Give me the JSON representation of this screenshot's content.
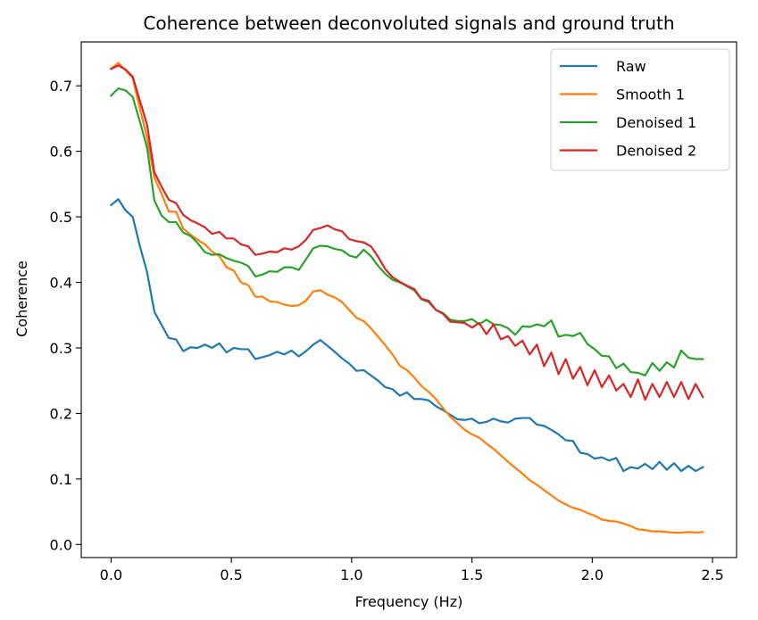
{
  "chart_data": {
    "type": "line",
    "title": "Coherence between deconvoluted signals and ground truth",
    "xlabel": "Frequency (Hz)",
    "ylabel": "Coherence",
    "xlim": [
      -0.124,
      2.6
    ],
    "ylim": [
      -0.02,
      0.767
    ],
    "xticks": [
      0.0,
      0.5,
      1.0,
      1.5,
      2.0,
      2.5
    ],
    "xtick_labels": [
      "0.0",
      "0.5",
      "1.0",
      "1.5",
      "2.0",
      "2.5"
    ],
    "yticks": [
      0.0,
      0.1,
      0.2,
      0.3,
      0.4,
      0.5,
      0.6,
      0.7
    ],
    "ytick_labels": [
      "0.0",
      "0.1",
      "0.2",
      "0.3",
      "0.4",
      "0.5",
      "0.6",
      "0.7"
    ],
    "grid": false,
    "legend_position": "top-right",
    "series": [
      {
        "name": "Raw",
        "color": "#1f77b4",
        "x": [
          0,
          0.03,
          0.06,
          0.09,
          0.12,
          0.15,
          0.18,
          0.21,
          0.24,
          0.27,
          0.3,
          0.33,
          0.36,
          0.39,
          0.42,
          0.45,
          0.48,
          0.51,
          0.54,
          0.57,
          0.6,
          0.63,
          0.66,
          0.69,
          0.72,
          0.75,
          0.78,
          0.81,
          0.84,
          0.87,
          0.9,
          0.93,
          0.96,
          0.99,
          1.02,
          1.05,
          1.08,
          1.11,
          1.14,
          1.17,
          1.2,
          1.23,
          1.26,
          1.29,
          1.32,
          1.35,
          1.38,
          1.41,
          1.44,
          1.47,
          1.5,
          1.53,
          1.56,
          1.59,
          1.62,
          1.65,
          1.68,
          1.71,
          1.74,
          1.77,
          1.8,
          1.83,
          1.86,
          1.89,
          1.92,
          1.95,
          1.98,
          2.01,
          2.04,
          2.07,
          2.1,
          2.13,
          2.16,
          2.19,
          2.22,
          2.25,
          2.28,
          2.31,
          2.34,
          2.37,
          2.4,
          2.43,
          2.46
        ],
        "values": [
          0.518,
          0.527,
          0.51,
          0.5,
          0.455,
          0.415,
          0.355,
          0.335,
          0.315,
          0.313,
          0.295,
          0.301,
          0.3,
          0.305,
          0.3,
          0.307,
          0.293,
          0.3,
          0.298,
          0.298,
          0.283,
          0.286,
          0.289,
          0.294,
          0.29,
          0.296,
          0.287,
          0.295,
          0.305,
          0.312,
          0.303,
          0.294,
          0.284,
          0.276,
          0.265,
          0.266,
          0.258,
          0.25,
          0.24,
          0.237,
          0.227,
          0.232,
          0.222,
          0.222,
          0.22,
          0.211,
          0.205,
          0.198,
          0.191,
          0.19,
          0.192,
          0.185,
          0.187,
          0.192,
          0.188,
          0.186,
          0.192,
          0.193,
          0.193,
          0.183,
          0.181,
          0.175,
          0.168,
          0.159,
          0.158,
          0.14,
          0.138,
          0.131,
          0.133,
          0.128,
          0.132,
          0.112,
          0.118,
          0.116,
          0.123,
          0.115,
          0.126,
          0.114,
          0.124,
          0.112,
          0.12,
          0.112,
          0.118
        ]
      },
      {
        "name": "Smooth 1",
        "color": "#ff7f0e",
        "x": [
          0,
          0.03,
          0.06,
          0.09,
          0.12,
          0.15,
          0.18,
          0.21,
          0.24,
          0.27,
          0.3,
          0.33,
          0.36,
          0.39,
          0.42,
          0.45,
          0.48,
          0.51,
          0.54,
          0.57,
          0.6,
          0.63,
          0.66,
          0.69,
          0.72,
          0.75,
          0.78,
          0.81,
          0.84,
          0.87,
          0.9,
          0.93,
          0.96,
          0.99,
          1.02,
          1.05,
          1.08,
          1.11,
          1.14,
          1.17,
          1.2,
          1.23,
          1.26,
          1.29,
          1.32,
          1.35,
          1.38,
          1.41,
          1.44,
          1.47,
          1.5,
          1.53,
          1.56,
          1.59,
          1.62,
          1.65,
          1.68,
          1.71,
          1.74,
          1.77,
          1.8,
          1.83,
          1.86,
          1.89,
          1.92,
          1.95,
          1.98,
          2.01,
          2.04,
          2.07,
          2.1,
          2.13,
          2.16,
          2.19,
          2.22,
          2.25,
          2.28,
          2.31,
          2.34,
          2.37,
          2.4,
          2.43,
          2.46
        ],
        "values": [
          0.726,
          0.735,
          0.724,
          0.712,
          0.665,
          0.62,
          0.56,
          0.535,
          0.508,
          0.508,
          0.482,
          0.473,
          0.465,
          0.458,
          0.447,
          0.44,
          0.423,
          0.418,
          0.4,
          0.396,
          0.378,
          0.378,
          0.371,
          0.37,
          0.366,
          0.364,
          0.365,
          0.372,
          0.386,
          0.388,
          0.381,
          0.377,
          0.37,
          0.358,
          0.346,
          0.341,
          0.33,
          0.317,
          0.304,
          0.29,
          0.273,
          0.266,
          0.255,
          0.242,
          0.233,
          0.222,
          0.208,
          0.195,
          0.185,
          0.175,
          0.168,
          0.163,
          0.154,
          0.146,
          0.136,
          0.126,
          0.117,
          0.108,
          0.098,
          0.091,
          0.083,
          0.075,
          0.067,
          0.061,
          0.056,
          0.053,
          0.048,
          0.044,
          0.038,
          0.036,
          0.035,
          0.032,
          0.028,
          0.023,
          0.022,
          0.02,
          0.02,
          0.019,
          0.018,
          0.018,
          0.019,
          0.018,
          0.019
        ]
      },
      {
        "name": "Denoised 1",
        "color": "#2ca02c",
        "x": [
          0,
          0.03,
          0.06,
          0.09,
          0.12,
          0.15,
          0.18,
          0.21,
          0.24,
          0.27,
          0.3,
          0.33,
          0.36,
          0.39,
          0.42,
          0.45,
          0.48,
          0.51,
          0.54,
          0.57,
          0.6,
          0.63,
          0.66,
          0.69,
          0.72,
          0.75,
          0.78,
          0.81,
          0.84,
          0.87,
          0.9,
          0.93,
          0.96,
          0.99,
          1.02,
          1.05,
          1.08,
          1.11,
          1.14,
          1.17,
          1.2,
          1.23,
          1.26,
          1.29,
          1.32,
          1.35,
          1.38,
          1.41,
          1.44,
          1.47,
          1.5,
          1.53,
          1.56,
          1.59,
          1.62,
          1.65,
          1.68,
          1.71,
          1.74,
          1.77,
          1.8,
          1.83,
          1.86,
          1.89,
          1.92,
          1.95,
          1.98,
          2.01,
          2.04,
          2.07,
          2.1,
          2.13,
          2.16,
          2.19,
          2.22,
          2.25,
          2.28,
          2.31,
          2.34,
          2.37,
          2.4,
          2.43,
          2.46
        ],
        "values": [
          0.685,
          0.696,
          0.693,
          0.683,
          0.645,
          0.605,
          0.525,
          0.502,
          0.492,
          0.492,
          0.476,
          0.471,
          0.46,
          0.446,
          0.442,
          0.443,
          0.437,
          0.433,
          0.43,
          0.425,
          0.409,
          0.412,
          0.417,
          0.416,
          0.423,
          0.423,
          0.419,
          0.435,
          0.452,
          0.456,
          0.455,
          0.451,
          0.449,
          0.441,
          0.438,
          0.45,
          0.44,
          0.425,
          0.413,
          0.404,
          0.4,
          0.394,
          0.388,
          0.374,
          0.37,
          0.358,
          0.353,
          0.343,
          0.341,
          0.341,
          0.344,
          0.336,
          0.343,
          0.336,
          0.335,
          0.33,
          0.32,
          0.333,
          0.332,
          0.336,
          0.333,
          0.342,
          0.317,
          0.32,
          0.318,
          0.323,
          0.306,
          0.298,
          0.288,
          0.287,
          0.269,
          0.276,
          0.263,
          0.262,
          0.258,
          0.277,
          0.265,
          0.278,
          0.27,
          0.296,
          0.285,
          0.283,
          0.283
        ]
      },
      {
        "name": "Denoised 2",
        "color": "#d62728",
        "x": [
          0,
          0.03,
          0.06,
          0.09,
          0.12,
          0.15,
          0.18,
          0.21,
          0.24,
          0.27,
          0.3,
          0.33,
          0.36,
          0.39,
          0.42,
          0.45,
          0.48,
          0.51,
          0.54,
          0.57,
          0.6,
          0.63,
          0.66,
          0.69,
          0.72,
          0.75,
          0.78,
          0.81,
          0.84,
          0.87,
          0.9,
          0.93,
          0.96,
          0.99,
          1.02,
          1.05,
          1.08,
          1.11,
          1.14,
          1.17,
          1.2,
          1.23,
          1.26,
          1.29,
          1.32,
          1.35,
          1.38,
          1.41,
          1.44,
          1.47,
          1.5,
          1.53,
          1.56,
          1.59,
          1.62,
          1.65,
          1.68,
          1.71,
          1.74,
          1.77,
          1.8,
          1.83,
          1.86,
          1.89,
          1.92,
          1.95,
          1.98,
          2.01,
          2.04,
          2.07,
          2.1,
          2.13,
          2.16,
          2.19,
          2.22,
          2.25,
          2.28,
          2.31,
          2.34,
          2.37,
          2.4,
          2.43,
          2.46
        ],
        "values": [
          0.726,
          0.731,
          0.725,
          0.714,
          0.677,
          0.64,
          0.568,
          0.546,
          0.526,
          0.521,
          0.503,
          0.495,
          0.49,
          0.484,
          0.474,
          0.477,
          0.467,
          0.467,
          0.458,
          0.455,
          0.442,
          0.444,
          0.447,
          0.446,
          0.452,
          0.45,
          0.455,
          0.465,
          0.48,
          0.483,
          0.487,
          0.481,
          0.478,
          0.466,
          0.463,
          0.461,
          0.455,
          0.439,
          0.42,
          0.408,
          0.401,
          0.395,
          0.39,
          0.375,
          0.372,
          0.358,
          0.352,
          0.34,
          0.339,
          0.338,
          0.331,
          0.338,
          0.321,
          0.336,
          0.313,
          0.318,
          0.303,
          0.311,
          0.29,
          0.305,
          0.272,
          0.293,
          0.26,
          0.283,
          0.253,
          0.271,
          0.243,
          0.266,
          0.24,
          0.258,
          0.235,
          0.245,
          0.225,
          0.252,
          0.221,
          0.245,
          0.225,
          0.248,
          0.225,
          0.248,
          0.222,
          0.245,
          0.225
        ]
      }
    ]
  }
}
